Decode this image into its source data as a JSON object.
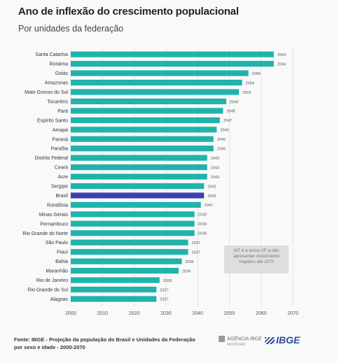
{
  "header": {
    "title": "Ano de inflexão do crescimento populacional",
    "subtitle": "Por unidades da federação"
  },
  "chart_data": {
    "type": "bar",
    "orientation": "horizontal",
    "categories": [
      "Santa Catarina",
      "Roraima",
      "Goiás",
      "Amazonas",
      "Mato Grosso do Sul",
      "Tocantins",
      "Pará",
      "Espírito Santo",
      "Amapá",
      "Paraná",
      "Paraíba",
      "Distrito Federal",
      "Ceará",
      "Acre",
      "Sergipe",
      "Brasil",
      "Rondônia",
      "Minas Gerais",
      "Pernambuco",
      "Rio Grande do Norte",
      "São Paulo",
      "Piauí",
      "Bahia",
      "Maranhão",
      "Rio de Janeiro",
      "Rio Grande do Sul",
      "Alagoas"
    ],
    "values": [
      2064,
      2064,
      2056,
      2054,
      2053,
      2049,
      2048,
      2047,
      2046,
      2045,
      2045,
      2043,
      2043,
      2043,
      2042,
      2042,
      2041,
      2039,
      2039,
      2039,
      2037,
      2037,
      2035,
      2034,
      2028,
      2027,
      2027
    ],
    "value_labels": [
      "2064",
      "2064",
      "2056",
      "2054",
      "2053",
      "2049",
      "2048",
      "2047",
      "2046",
      "2045",
      "2045",
      "2043",
      "2043",
      "2043",
      "2042",
      "2042",
      "2041",
      "2039",
      "2039",
      "2039",
      "2037",
      "2037",
      "2035",
      "2034",
      "2028",
      "2027",
      "2027"
    ],
    "highlight_category": "Brasil",
    "xlim": [
      2000,
      2070
    ],
    "xticks": [
      "2000",
      "2010",
      "2020",
      "2030",
      "2040",
      "2050",
      "2060",
      "2070"
    ],
    "grid": true,
    "colors": {
      "bar": "#1fb3ab",
      "highlight": "#3b3fb0",
      "grid": "#dcdcdc"
    },
    "annotation": "MT é a única UF a não apresentar crescimento negativo até 2070"
  },
  "footer": {
    "source_line1": "Fonte: IBGE - Projeção da população do Brasil e Unidades da Federação",
    "source_line2": "por sexo e idade - 2000-2070",
    "agencia_logo": "AGÊNCIA IBGE",
    "agencia_sub": "NOTÍCIAS",
    "ibge_logo": "IBGE"
  }
}
